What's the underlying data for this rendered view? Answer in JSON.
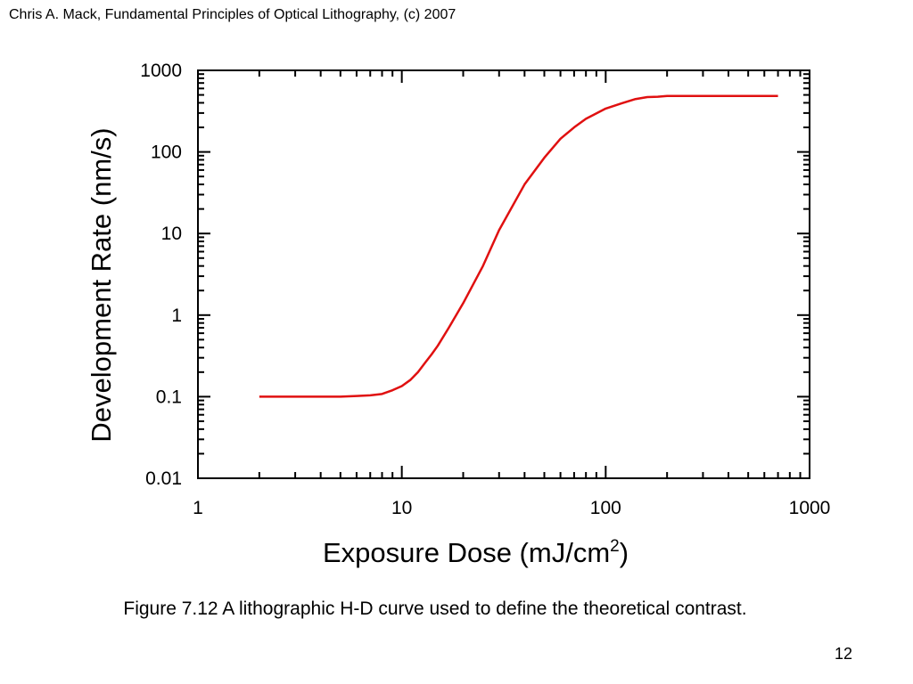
{
  "header": {
    "copyright": "Chris A. Mack, Fundamental Principles of Optical Lithography, (c) 2007"
  },
  "caption": "Figure 7.12  A lithographic H-D curve used to define the theoretical contrast.",
  "page_number": "12",
  "colors": {
    "curve": "#e01010",
    "axes": "#000000",
    "background": "#ffffff"
  },
  "chart_data": {
    "type": "line",
    "title": "",
    "xlabel_main": "Exposure Dose (mJ/cm",
    "xlabel_sup": "2",
    "xlabel_close": ")",
    "ylabel": "Development Rate (nm/s)",
    "xscale": "log",
    "yscale": "log",
    "xlim": [
      1,
      1000
    ],
    "ylim": [
      0.01,
      1000
    ],
    "x_ticks": [
      "1",
      "10",
      "100",
      "1000"
    ],
    "y_ticks": [
      "0.01",
      "0.1",
      "1",
      "10",
      "100",
      "1000"
    ],
    "grid": false,
    "legend": "none",
    "series": [
      {
        "x": [
          2,
          3,
          4,
          5,
          6,
          7,
          8,
          9,
          10,
          11,
          12,
          13,
          14,
          15,
          17,
          20,
          25,
          30,
          40,
          50,
          60,
          70,
          80,
          100,
          120,
          140,
          160,
          180,
          200,
          300,
          400,
          500,
          700
        ],
        "y": [
          0.1,
          0.1,
          0.1,
          0.1,
          0.102,
          0.104,
          0.108,
          0.12,
          0.135,
          0.16,
          0.2,
          0.26,
          0.33,
          0.42,
          0.7,
          1.4,
          4,
          11,
          40,
          85,
          145,
          200,
          255,
          340,
          395,
          445,
          470,
          475,
          485,
          485,
          485,
          485,
          485
        ]
      }
    ]
  }
}
